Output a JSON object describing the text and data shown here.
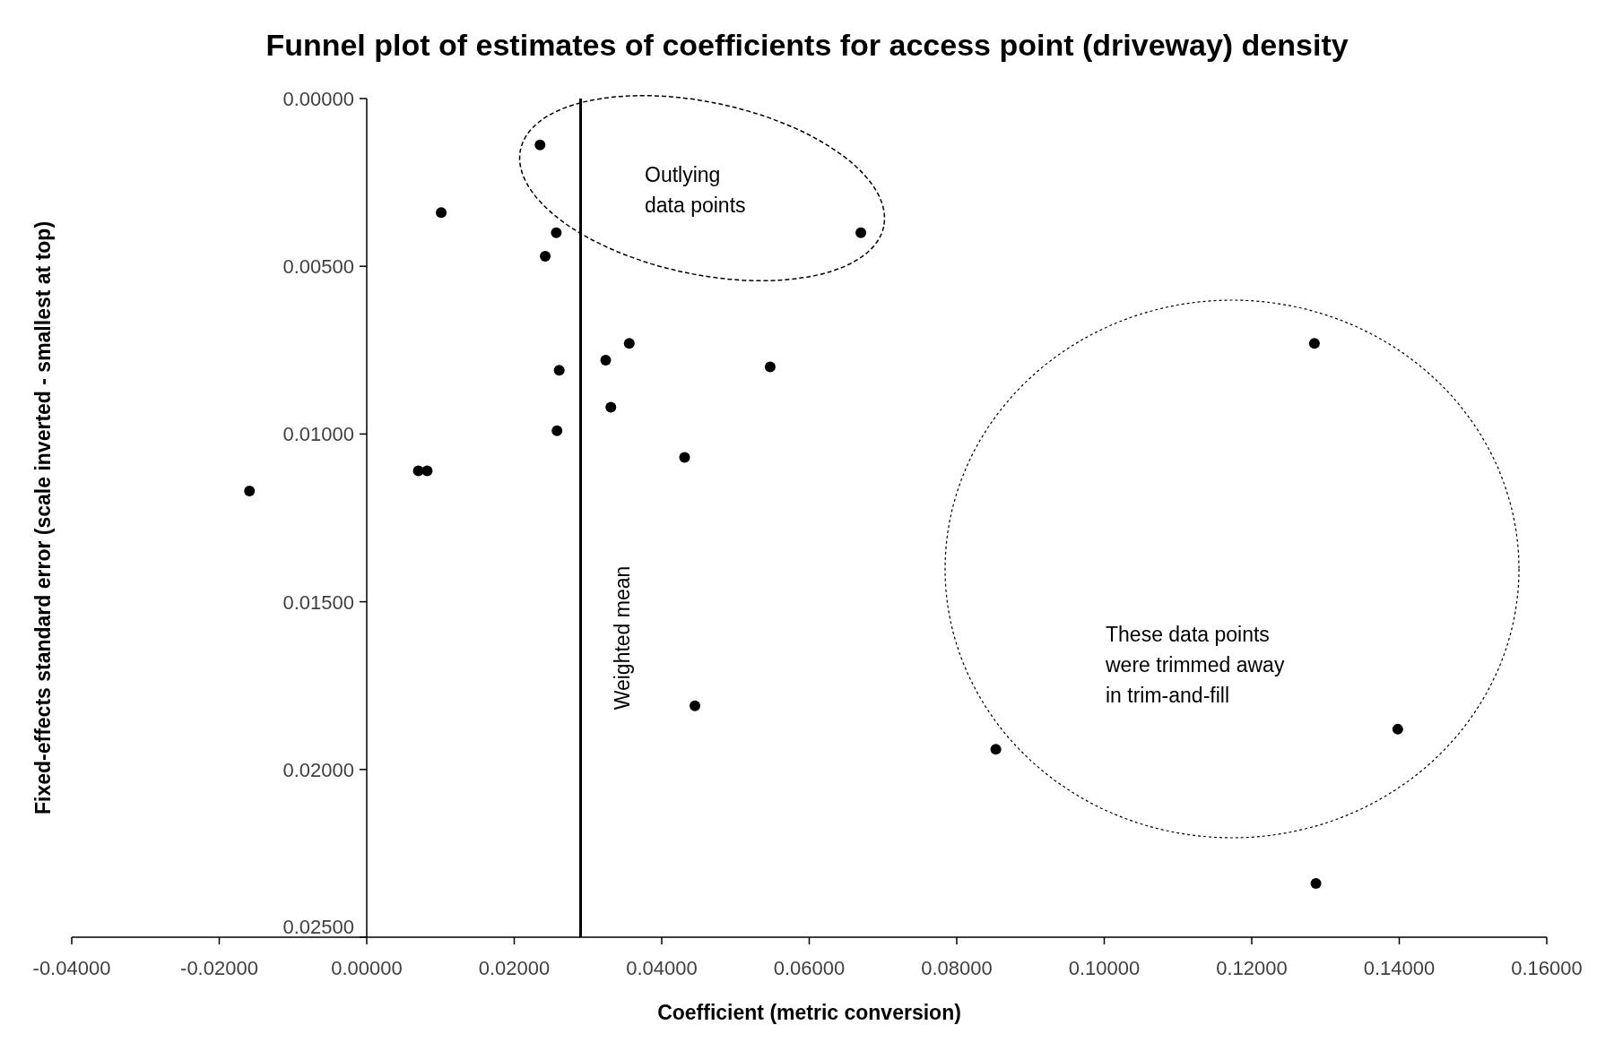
{
  "chart_data": {
    "type": "scatter",
    "title": "Funnel plot of estimates of coefficients for access point (driveway) density",
    "xlabel": "Coefficient (metric conversion)",
    "ylabel": "Fixed-effects standard error (scale inverted - smallest at top)",
    "x": [
      0.0235,
      0.0101,
      0.0257,
      0.0242,
      0.067,
      0.0356,
      0.0324,
      0.0261,
      0.0547,
      0.0331,
      0.0258,
      0.0431,
      0.007,
      0.0082,
      -0.0159,
      0.0445,
      0.1285,
      0.1398,
      0.0853,
      0.1287
    ],
    "values": [
      0.00138,
      0.0034,
      0.004,
      0.0047,
      0.004,
      0.0073,
      0.0078,
      0.0081,
      0.008,
      0.0092,
      0.0099,
      0.0107,
      0.0111,
      0.0111,
      0.0117,
      0.0181,
      0.0073,
      0.0188,
      0.0194,
      0.0234
    ],
    "color": "#000000",
    "marker": "circle",
    "grid": false,
    "xlim": [
      -0.04,
      0.16
    ],
    "xticks": [
      {
        "value": -0.04,
        "label": "-0.04000"
      },
      {
        "value": -0.02,
        "label": "-0.02000"
      },
      {
        "value": 0,
        "label": "0.00000"
      },
      {
        "value": 0.02,
        "label": "0.02000"
      },
      {
        "value": 0.04,
        "label": "0.04000"
      },
      {
        "value": 0.06,
        "label": "0.06000"
      },
      {
        "value": 0.08,
        "label": "0.08000"
      },
      {
        "value": 0.1,
        "label": "0.10000"
      },
      {
        "value": 0.12,
        "label": "0.12000"
      },
      {
        "value": 0.14,
        "label": "0.14000"
      },
      {
        "value": 0.16,
        "label": "0.16000"
      }
    ],
    "ylim": [
      0.025,
      0
    ],
    "yticks": [
      {
        "value": 0,
        "label": "0.00000"
      },
      {
        "value": 0.005,
        "label": "0.00500"
      },
      {
        "value": 0.01,
        "label": "0.01000"
      },
      {
        "value": 0.015,
        "label": "0.01500"
      },
      {
        "value": 0.02,
        "label": "0.02000"
      },
      {
        "value": 0.025,
        "label": "0.02500"
      }
    ],
    "ref_lines": [
      {
        "axis": "x",
        "value": 0.029,
        "label": "Weighted mean",
        "color": "#000000",
        "line_style": "solid"
      }
    ],
    "annotations": [
      "Outlying data points",
      "These data points were trimmed away in trim-and-fill"
    ]
  }
}
